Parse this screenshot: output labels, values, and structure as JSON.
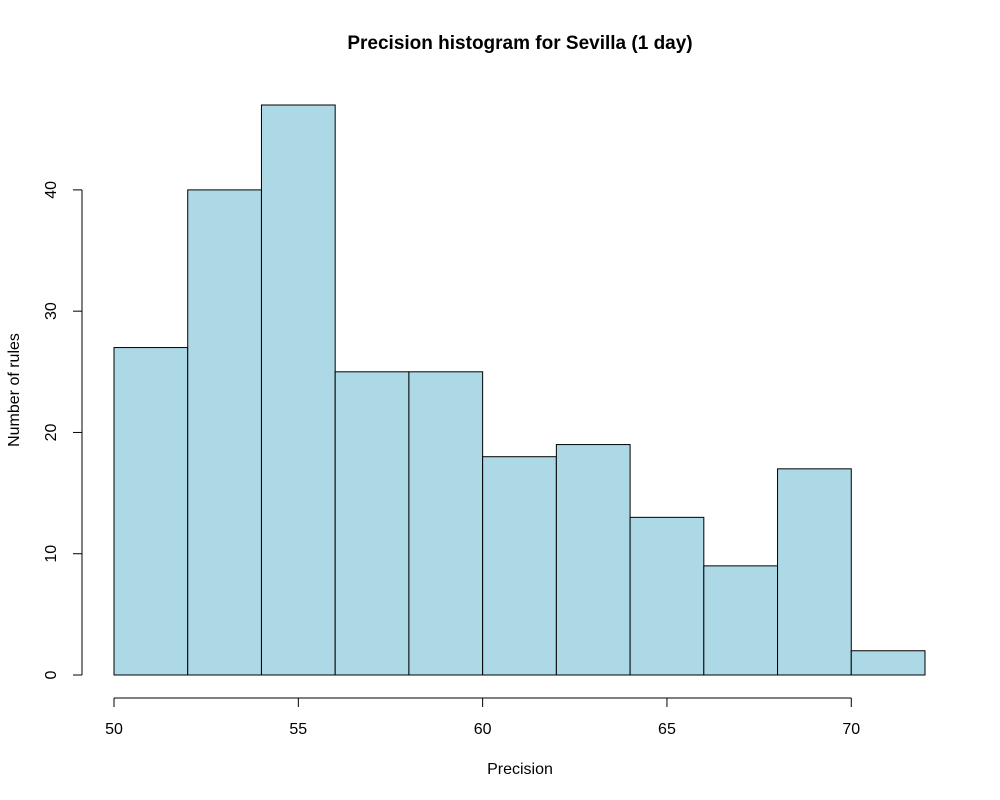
{
  "chart_data": {
    "type": "bar",
    "title": "Precision histogram for Sevilla (1 day)",
    "xlabel": "Precision",
    "ylabel": "Number of rules",
    "bins": [
      {
        "start": 50,
        "end": 52,
        "count": 27
      },
      {
        "start": 52,
        "end": 54,
        "count": 40
      },
      {
        "start": 54,
        "end": 56,
        "count": 47
      },
      {
        "start": 56,
        "end": 58,
        "count": 25
      },
      {
        "start": 58,
        "end": 60,
        "count": 25
      },
      {
        "start": 60,
        "end": 62,
        "count": 18
      },
      {
        "start": 62,
        "end": 64,
        "count": 19
      },
      {
        "start": 64,
        "end": 66,
        "count": 13
      },
      {
        "start": 66,
        "end": 68,
        "count": 9
      },
      {
        "start": 68,
        "end": 70,
        "count": 17
      },
      {
        "start": 70,
        "end": 72,
        "count": 2
      }
    ],
    "xlim": [
      50,
      72
    ],
    "ylim": [
      0,
      47
    ],
    "x_ticks": [
      50,
      55,
      60,
      65,
      70
    ],
    "y_ticks": [
      0,
      10,
      20,
      30,
      40
    ],
    "bar_color": "#add8e6",
    "grid": false,
    "legend": "none"
  }
}
